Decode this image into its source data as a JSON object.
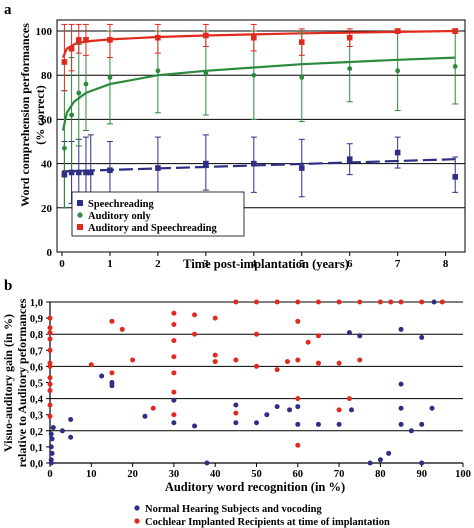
{
  "chart_data": [
    {
      "panel_label": "a",
      "type": "scatter",
      "xlabel": "Time post-implantation (years)",
      "ylabel_lines": [
        "Word comprehension performances",
        "(% correct)"
      ],
      "xlim": [
        0,
        8.3
      ],
      "ylim": [
        0,
        105
      ],
      "x_ticks": [
        "0",
        "1",
        "2",
        "3",
        "4",
        "5",
        "6",
        "7",
        "8"
      ],
      "y_ticks": [
        "0",
        "20",
        "40",
        "60",
        "80",
        "100"
      ],
      "grid": "horizontal",
      "legend_position": "bottom-left",
      "colors": {
        "Speechreading": "#2e2e86",
        "Auditory only": "#2c8a3c",
        "Auditory and Speechreading": "#e02a1e"
      },
      "series": [
        {
          "name": "Speechreading",
          "marker": "square",
          "fit": "linear-dashed",
          "points": [
            {
              "x": 0.05,
              "y": 35,
              "lo": 20,
              "hi": 50
            },
            {
              "x": 0.2,
              "y": 36,
              "lo": 22,
              "hi": 50
            },
            {
              "x": 0.35,
              "y": 36,
              "lo": 22,
              "hi": 51
            },
            {
              "x": 0.5,
              "y": 36,
              "lo": 22,
              "hi": 52
            },
            {
              "x": 0.6,
              "y": 36,
              "lo": 12,
              "hi": 53
            },
            {
              "x": 1,
              "y": 37,
              "lo": 25,
              "hi": 50
            },
            {
              "x": 2,
              "y": 38,
              "lo": 25,
              "hi": 52
            },
            {
              "x": 3,
              "y": 40,
              "lo": 28,
              "hi": 53
            },
            {
              "x": 4,
              "y": 40,
              "lo": 27,
              "hi": 52
            },
            {
              "x": 5,
              "y": 38,
              "lo": 25,
              "hi": 51
            },
            {
              "x": 6,
              "y": 42,
              "lo": 35,
              "hi": 49
            },
            {
              "x": 7,
              "y": 45,
              "lo": 38,
              "hi": 52
            },
            {
              "x": 8.2,
              "y": 34,
              "lo": 27,
              "hi": 43
            }
          ],
          "fit_line": [
            [
              0,
              36.5
            ],
            [
              8.2,
              42
            ]
          ]
        },
        {
          "name": "Auditory only",
          "marker": "circle",
          "fit": "log-solid",
          "points": [
            {
              "x": 0.05,
              "y": 47,
              "lo": 20,
              "hi": 73
            },
            {
              "x": 0.2,
              "y": 62,
              "lo": 36,
              "hi": 88
            },
            {
              "x": 0.35,
              "y": 72,
              "lo": 48,
              "hi": 94
            },
            {
              "x": 0.5,
              "y": 76,
              "lo": 55,
              "hi": 97
            },
            {
              "x": 1,
              "y": 79,
              "lo": 58,
              "hi": 100
            },
            {
              "x": 2,
              "y": 82,
              "lo": 63,
              "hi": 100
            },
            {
              "x": 3,
              "y": 81,
              "lo": 62,
              "hi": 100
            },
            {
              "x": 4,
              "y": 80,
              "lo": 60,
              "hi": 100
            },
            {
              "x": 5,
              "y": 79,
              "lo": 59,
              "hi": 99
            },
            {
              "x": 6,
              "y": 83,
              "lo": 68,
              "hi": 98
            },
            {
              "x": 7,
              "y": 82,
              "lo": 64,
              "hi": 100
            },
            {
              "x": 8.2,
              "y": 84,
              "lo": 67,
              "hi": 100
            }
          ],
          "fit_line": [
            [
              0.02,
              55
            ],
            [
              0.1,
              63
            ],
            [
              0.25,
              68
            ],
            [
              0.5,
              72
            ],
            [
              1,
              76
            ],
            [
              2,
              80
            ],
            [
              3,
              82
            ],
            [
              4,
              83.5
            ],
            [
              5,
              85
            ],
            [
              6,
              86
            ],
            [
              7,
              87
            ],
            [
              8.2,
              88
            ]
          ]
        },
        {
          "name": "Auditory and Speechreading",
          "marker": "square",
          "fit": "log-solid",
          "points": [
            {
              "x": 0.05,
              "y": 86,
              "lo": 73,
              "hi": 103
            },
            {
              "x": 0.2,
              "y": 92,
              "lo": 82,
              "hi": 103
            },
            {
              "x": 0.35,
              "y": 96,
              "lo": 90,
              "hi": 103
            },
            {
              "x": 0.5,
              "y": 96,
              "lo": 89,
              "hi": 103
            },
            {
              "x": 1,
              "y": 96,
              "lo": 88,
              "hi": 103
            },
            {
              "x": 2,
              "y": 97,
              "lo": 90,
              "hi": 103
            },
            {
              "x": 3,
              "y": 98,
              "lo": 93,
              "hi": 103
            },
            {
              "x": 4,
              "y": 97,
              "lo": 91,
              "hi": 103
            },
            {
              "x": 5,
              "y": 95,
              "lo": 89,
              "hi": 101
            },
            {
              "x": 6,
              "y": 97,
              "lo": 93,
              "hi": 101
            },
            {
              "x": 7,
              "y": 100,
              "lo": 99,
              "hi": 101
            },
            {
              "x": 8.2,
              "y": 100,
              "lo": 99,
              "hi": 101
            }
          ],
          "fit_line": [
            [
              0.02,
              88
            ],
            [
              0.1,
              92
            ],
            [
              0.3,
              94.5
            ],
            [
              0.6,
              95.5
            ],
            [
              1,
              96.2
            ],
            [
              2,
              97.3
            ],
            [
              3,
              98
            ],
            [
              4,
              98.5
            ],
            [
              5,
              99
            ],
            [
              6,
              99.3
            ],
            [
              7,
              99.6
            ],
            [
              8.2,
              100
            ]
          ]
        }
      ]
    },
    {
      "panel_label": "b",
      "type": "scatter",
      "xlabel": "Auditory word recognition (in %)",
      "ylabel_lines": [
        "Visuo-auditory gain (in %)",
        "relative to Auditory peformances"
      ],
      "xlim": [
        0,
        100
      ],
      "ylim": [
        0,
        1
      ],
      "x_ticks": [
        "0",
        "10",
        "20",
        "30",
        "40",
        "50",
        "60",
        "70",
        "80",
        "90",
        "100"
      ],
      "y_ticks": [
        "0,0",
        "0,1",
        "0,2",
        "0,3",
        "0,4",
        "0,5",
        "0,6",
        "0,7",
        "0,8",
        "0,9",
        "1,0"
      ],
      "grid": "horizontal",
      "legend_position": "bottom",
      "colors": {
        "Normal Hearing Subjects and vocoding": "#2e2e86",
        "Cochlear Implanted Recipients at time of implantation": "#e02a1e"
      },
      "series": [
        {
          "name": "Normal Hearing Subjects and vocoding",
          "marker": "circle",
          "points": [
            [
              0.3,
              0.0
            ],
            [
              0.3,
              0.02
            ],
            [
              0.5,
              0.06
            ],
            [
              0.3,
              0.1
            ],
            [
              0.5,
              0.15
            ],
            [
              0.3,
              0.18
            ],
            [
              0.8,
              0.22
            ],
            [
              3,
              0.2
            ],
            [
              5,
              0.16
            ],
            [
              5,
              0.27
            ],
            [
              12.5,
              0.54
            ],
            [
              15,
              0.5
            ],
            [
              15,
              0.48
            ],
            [
              23,
              0.29
            ],
            [
              30,
              0.25
            ],
            [
              30,
              0.39
            ],
            [
              35,
              0.23
            ],
            [
              38,
              0.0
            ],
            [
              45,
              0.25
            ],
            [
              45,
              0.36
            ],
            [
              50,
              0.25
            ],
            [
              52.5,
              0.3
            ],
            [
              55,
              0.35
            ],
            [
              58,
              0.33
            ],
            [
              60,
              0.24
            ],
            [
              60,
              0.35
            ],
            [
              65,
              0.24
            ],
            [
              70,
              0.24
            ],
            [
              72.5,
              0.81
            ],
            [
              73,
              0.33
            ],
            [
              75,
              0.79
            ],
            [
              77.5,
              0.0
            ],
            [
              80,
              0.02
            ],
            [
              82,
              0.06
            ],
            [
              85,
              0.83
            ],
            [
              85,
              0.34
            ],
            [
              85,
              0.24
            ],
            [
              85,
              0.49
            ],
            [
              87.5,
              0.2
            ],
            [
              90,
              0.78
            ],
            [
              90,
              0.24
            ],
            [
              90,
              0.0
            ],
            [
              92.5,
              0.34
            ],
            [
              93,
              1.0
            ]
          ]
        },
        {
          "name": "Cochlear Implanted Recipients at time of implantation",
          "marker": "circle",
          "points": [
            [
              0,
              0.9
            ],
            [
              0,
              0.84
            ],
            [
              0,
              0.81
            ],
            [
              0,
              0.77
            ],
            [
              0,
              0.7
            ],
            [
              0,
              0.62
            ],
            [
              0,
              0.6
            ],
            [
              0,
              0.53
            ],
            [
              0,
              0.49
            ],
            [
              0,
              0.45
            ],
            [
              0,
              0.36
            ],
            [
              0,
              0.29
            ],
            [
              10,
              0.61
            ],
            [
              15,
              0.88
            ],
            [
              15,
              0.56
            ],
            [
              17.5,
              0.83
            ],
            [
              20,
              0.64
            ],
            [
              25,
              0.34
            ],
            [
              30,
              0.93
            ],
            [
              30,
              0.86
            ],
            [
              30,
              0.76
            ],
            [
              30,
              0.66
            ],
            [
              30,
              0.56
            ],
            [
              30,
              0.44
            ],
            [
              30,
              0.3
            ],
            [
              35,
              0.92
            ],
            [
              35,
              0.8
            ],
            [
              40,
              0.9
            ],
            [
              40,
              0.67
            ],
            [
              40,
              0.63
            ],
            [
              45,
              1.0
            ],
            [
              45,
              0.64
            ],
            [
              45,
              0.31
            ],
            [
              50,
              1.0
            ],
            [
              50,
              0.8
            ],
            [
              50,
              0.6
            ],
            [
              55,
              1.0
            ],
            [
              55,
              0.58
            ],
            [
              57.5,
              0.63
            ],
            [
              60,
              1.0
            ],
            [
              60,
              0.88
            ],
            [
              60,
              0.64
            ],
            [
              60,
              0.4
            ],
            [
              60,
              0.11
            ],
            [
              62.5,
              0.75
            ],
            [
              65,
              1.0
            ],
            [
              65,
              0.79
            ],
            [
              65,
              0.62
            ],
            [
              70,
              1.0
            ],
            [
              70,
              0.62
            ],
            [
              70,
              0.33
            ],
            [
              72.5,
              0.4
            ],
            [
              75,
              1.0
            ],
            [
              75,
              0.64
            ],
            [
              80,
              1.0
            ],
            [
              82.5,
              1.0
            ],
            [
              85,
              1.0
            ],
            [
              90,
              1.0
            ],
            [
              95,
              1.0
            ]
          ]
        }
      ]
    }
  ]
}
